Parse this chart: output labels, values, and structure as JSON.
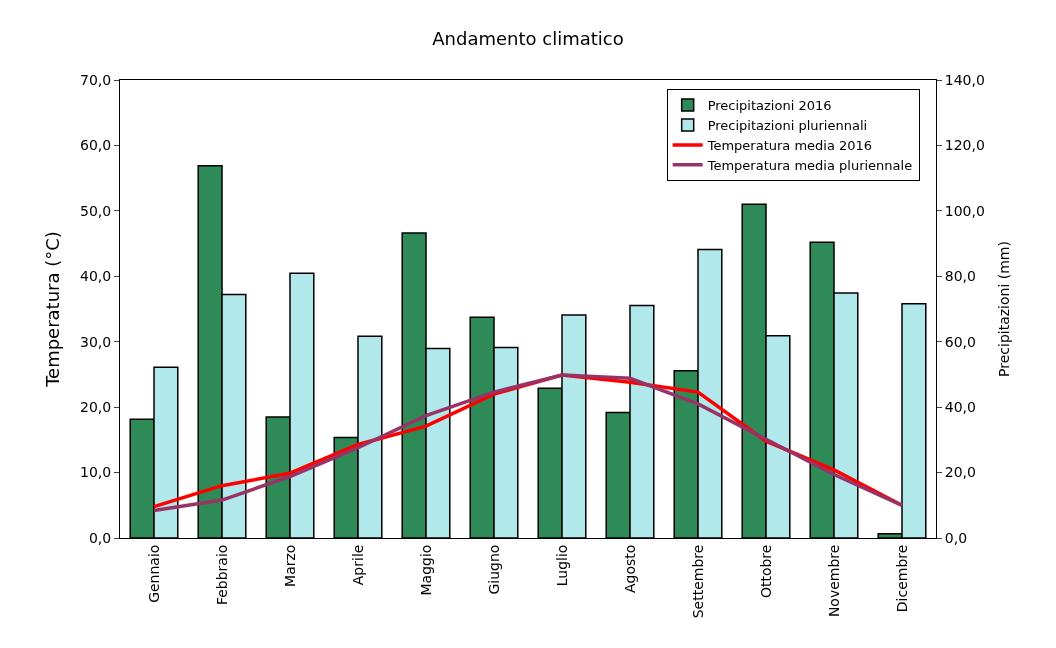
{
  "chart_data": {
    "type": "bar",
    "title": "Andamento climatico",
    "ylabel": "Temperatura (°C)",
    "y2label": "Precipitazioni (mm)",
    "categories": [
      "Gennaio",
      "Febbraio",
      "Marzo",
      "Aprile",
      "Maggio",
      "Giugno",
      "Luglio",
      "Agosto",
      "Settembre",
      "Ottobre",
      "Novembre",
      "Dicembre"
    ],
    "series": [
      {
        "name": "Precipitazioni 2016",
        "axis": "y2",
        "color": "#2e8b57",
        "values": [
          36.3,
          113.8,
          37.0,
          30.7,
          93.2,
          67.5,
          45.8,
          38.4,
          51.1,
          102.0,
          90.4,
          1.3
        ]
      },
      {
        "name": "Precipitazioni pluriennali",
        "axis": "y2",
        "color": "#b0e8ec",
        "values": [
          52.2,
          74.4,
          80.9,
          61.7,
          57.9,
          58.2,
          68.2,
          71.1,
          88.2,
          61.8,
          74.9,
          71.6
        ]
      },
      {
        "name": "Temperatura media 2016",
        "type": "line",
        "color": "#ff0000",
        "values": [
          4.8,
          8.0,
          9.9,
          14.3,
          17.1,
          22.0,
          24.9,
          23.8,
          22.3,
          14.8,
          10.4,
          5.0
        ]
      },
      {
        "name": "Temperatura media pluriennale",
        "type": "line",
        "color": "#993366",
        "values": [
          4.2,
          5.8,
          9.4,
          13.8,
          18.7,
          22.3,
          24.9,
          24.4,
          20.5,
          15.1,
          9.7,
          5.0
        ]
      }
    ],
    "ylim": [
      0,
      70
    ],
    "yticks": [
      {
        "value": 0,
        "label": "0,0"
      },
      {
        "value": 10,
        "label": "10,0"
      },
      {
        "value": 20,
        "label": "20,0"
      },
      {
        "value": 30,
        "label": "30,0"
      },
      {
        "value": 40,
        "label": "40,0"
      },
      {
        "value": 50,
        "label": "50,0"
      },
      {
        "value": 60,
        "label": "60,0"
      },
      {
        "value": 70,
        "label": "70,0"
      }
    ],
    "y2lim": [
      0,
      140
    ],
    "y2ticks": [
      {
        "value": 0,
        "label": "0,0"
      },
      {
        "value": 20,
        "label": "20,0"
      },
      {
        "value": 40,
        "label": "40,0"
      },
      {
        "value": 60,
        "label": "60,0"
      },
      {
        "value": 80,
        "label": "80,0"
      },
      {
        "value": 100,
        "label": "100,0"
      },
      {
        "value": 120,
        "label": "120,0"
      },
      {
        "value": 140,
        "label": "140,0"
      }
    ],
    "grid": false,
    "legend": "top right",
    "marker": "none",
    "line_style": "solid"
  }
}
